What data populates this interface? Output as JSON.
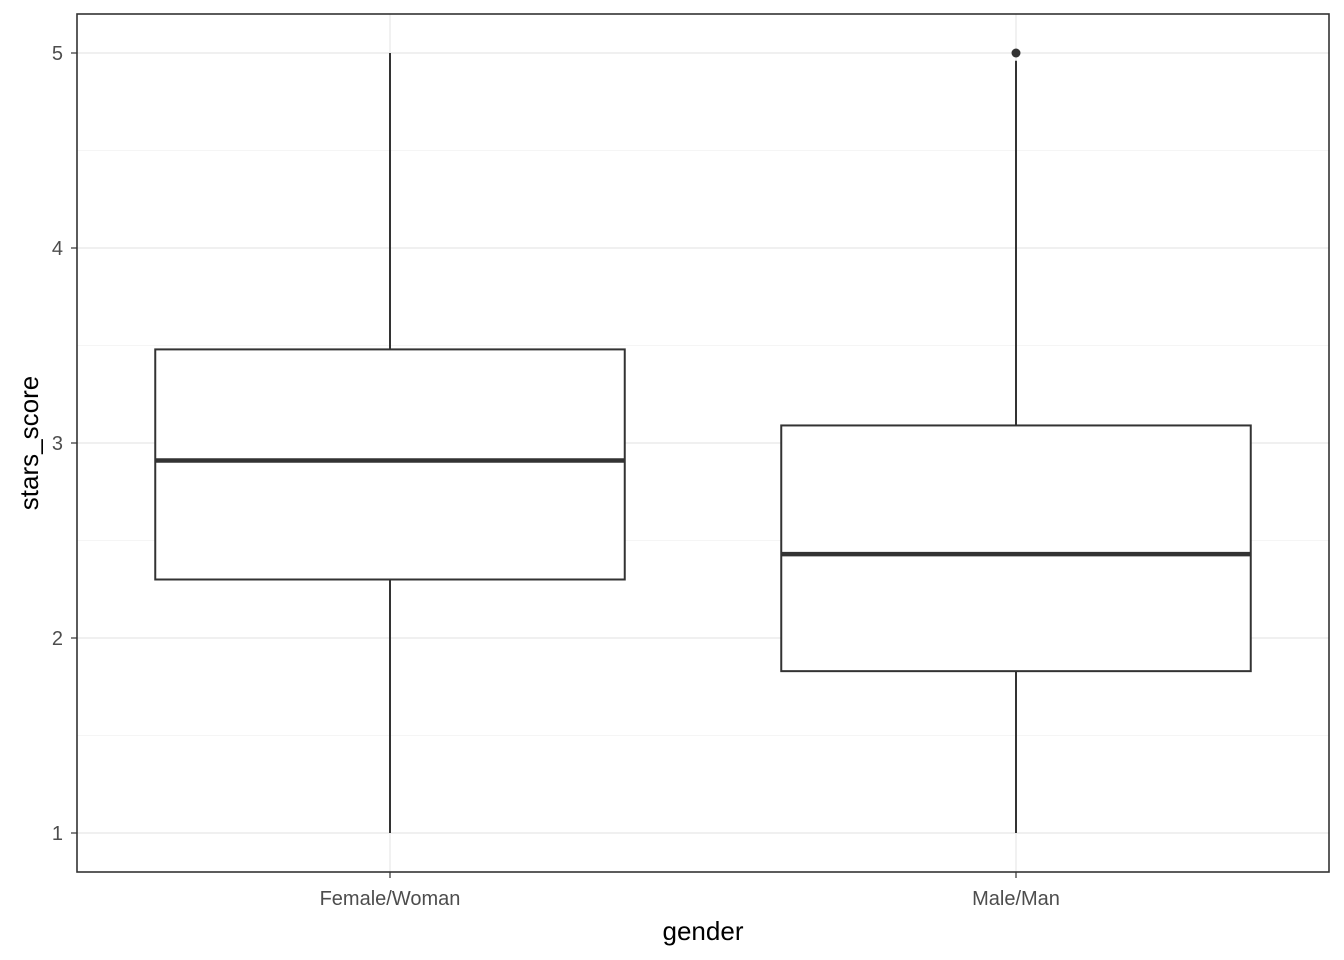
{
  "chart_data": {
    "type": "boxplot",
    "xlabel": "gender",
    "ylabel": "stars_score",
    "categories": [
      "Female/Woman",
      "Male/Man"
    ],
    "ylim": [
      0.8,
      5.2
    ],
    "yticks": [
      1,
      2,
      3,
      4,
      5
    ],
    "grid": true,
    "boxes": [
      {
        "category": "Female/Woman",
        "min": 1,
        "q1": 2.3,
        "median": 2.91,
        "q3": 3.48,
        "max": 5,
        "outliers": []
      },
      {
        "category": "Male/Man",
        "min": 1,
        "q1": 1.83,
        "median": 2.43,
        "q3": 3.09,
        "max": 4.96,
        "outliers": [
          5
        ]
      }
    ]
  }
}
